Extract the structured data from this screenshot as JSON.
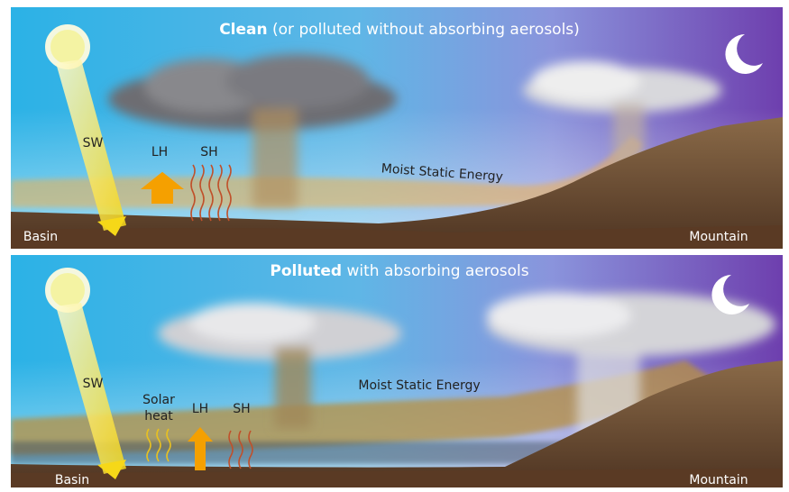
{
  "panels": [
    {
      "title_bold": "Clean",
      "title_rest": "(or polluted without absorbing aerosols)",
      "sw": "SW",
      "lh": "LH",
      "sh": "SH",
      "flow": "Moist Static Energy",
      "left": "Basin",
      "right": "Mountain"
    },
    {
      "title_bold": "Polluted",
      "title_rest": "with absorbing aerosols",
      "sw": "SW",
      "solar_heat": [
        "Solar",
        "heat"
      ],
      "lh": "LH",
      "sh": "SH",
      "flow": "Moist Static Energy",
      "left": "Basin",
      "right": "Mountain"
    }
  ]
}
